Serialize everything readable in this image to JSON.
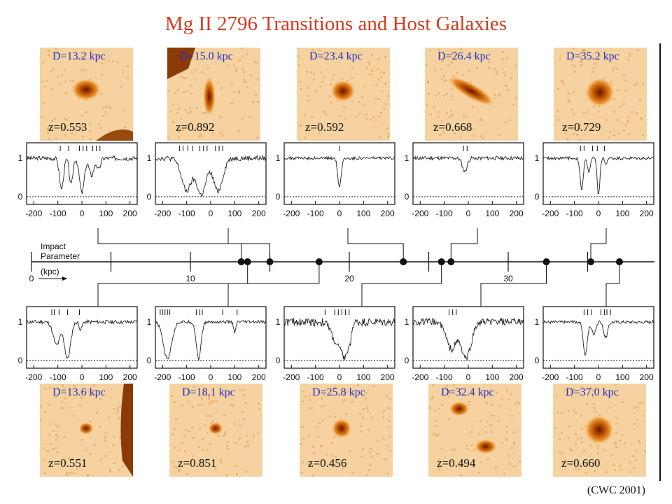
{
  "figure_title": "Mg II 2796 Transitions and Host Galaxies",
  "credit": "(CWC 2001)",
  "axis": {
    "label_lines": [
      "Impact",
      "Parameter",
      "(kpc)"
    ],
    "ticks": [
      "0",
      "10",
      "20",
      "30"
    ],
    "range": [
      0,
      39
    ]
  },
  "spectrum_axis": {
    "x_ticks": [
      "-200",
      "-100",
      "0",
      "100",
      "200"
    ],
    "y_ticks": [
      "1",
      "0"
    ]
  },
  "chart_data": {
    "type": "scatter",
    "title": "Mg II 2796 Transitions and Host Galaxies",
    "xlabel": "Impact Parameter (kpc)",
    "xlim": [
      0,
      39
    ],
    "galaxies": [
      {
        "D": 13.2,
        "z": 0.553,
        "row": "top"
      },
      {
        "D": 15.0,
        "z": 0.892,
        "row": "top"
      },
      {
        "D": 23.4,
        "z": 0.592,
        "row": "top"
      },
      {
        "D": 26.4,
        "z": 0.668,
        "row": "top"
      },
      {
        "D": 35.2,
        "z": 0.729,
        "row": "top"
      },
      {
        "D": 13.6,
        "z": 0.551,
        "row": "bottom"
      },
      {
        "D": 18.1,
        "z": 0.851,
        "row": "bottom"
      },
      {
        "D": 25.8,
        "z": 0.456,
        "row": "bottom"
      },
      {
        "D": 32.4,
        "z": 0.494,
        "row": "bottom"
      },
      {
        "D": 37.0,
        "z": 0.66,
        "row": "bottom"
      }
    ]
  },
  "galaxies_top": [
    {
      "d_label": "D=13.2 kpc",
      "z_label": "z=0.553"
    },
    {
      "d_label": "D=15.0 kpc",
      "z_label": "z=0.892"
    },
    {
      "d_label": "D=23.4 kpc",
      "z_label": "z=0.592"
    },
    {
      "d_label": "D=26.4 kpc",
      "z_label": "z=0.668"
    },
    {
      "d_label": "D=35.2 kpc",
      "z_label": "z=0.729"
    }
  ],
  "galaxies_bottom": [
    {
      "d_label": "D=13.6 kpc",
      "z_label": "z=0.551"
    },
    {
      "d_label": "D=18.1 kpc",
      "z_label": "z=0.851"
    },
    {
      "d_label": "D=25.8 kpc",
      "z_label": "z=0.456"
    },
    {
      "d_label": "D=32.4 kpc",
      "z_label": "z=0.494"
    },
    {
      "d_label": "D=37.0 kpc",
      "z_label": "z=0.660"
    }
  ],
  "colors": {
    "title": "#d63a1e",
    "d_label": "#2233cc",
    "galaxy_core": "#7a2a00",
    "galaxy_bg": "#f3c080"
  }
}
